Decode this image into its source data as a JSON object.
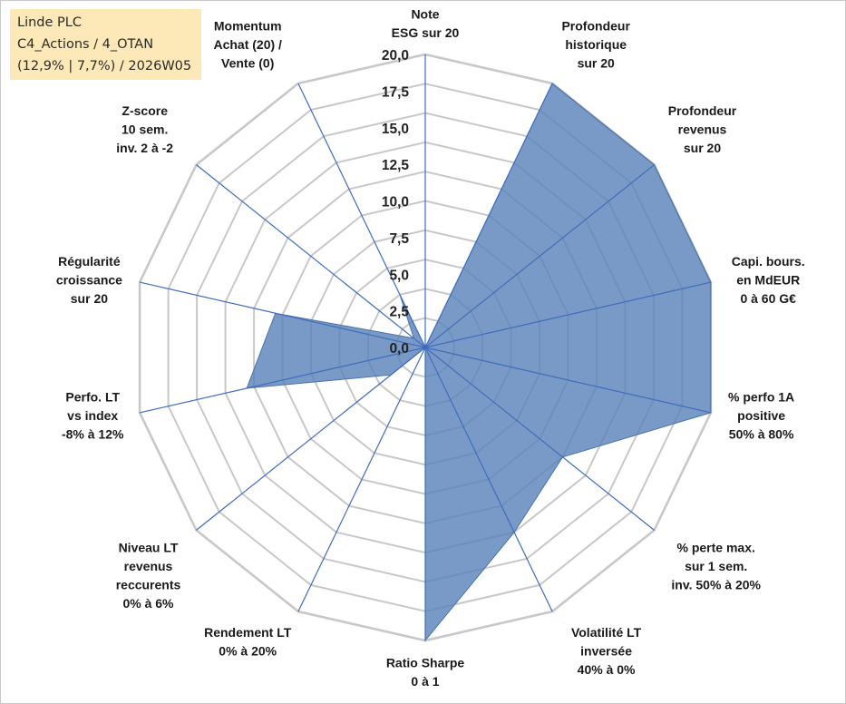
{
  "info_box": {
    "line1": "Linde PLC",
    "line2": "C4_Actions / 4_OTAN",
    "line3": "(12,9% | 7,7%) / 2026W05"
  },
  "chart_data": {
    "type": "radar",
    "title": "",
    "rmin": 0,
    "rmax": 20,
    "ticks": [
      "0,0",
      "2,5",
      "5,0",
      "7,5",
      "10,0",
      "12,5",
      "15,0",
      "17,5",
      "20,0"
    ],
    "tick_values": [
      0,
      2.5,
      5,
      7.5,
      10,
      12.5,
      15,
      17.5,
      20
    ],
    "grid_levels": 10,
    "categories": [
      [
        "Note",
        "ESG sur 20"
      ],
      [
        "Profondeur",
        "historique",
        "sur 20"
      ],
      [
        "Profondeur",
        "revenus",
        "sur 20"
      ],
      [
        "Capi. bours.",
        "en MdEUR",
        "0 à 60 G€"
      ],
      [
        "% perfo 1A",
        "positive",
        "50% à 80%"
      ],
      [
        "% perte max.",
        "sur 1 sem.",
        "inv. 50% à 20%"
      ],
      [
        "Volatilité LT",
        "inversée",
        "40% à 0%"
      ],
      [
        "Ratio Sharpe",
        "0 à 1"
      ],
      [
        "Rendement LT",
        "0% à 20%"
      ],
      [
        "Niveau LT",
        "revenus",
        "reccurents",
        "0% à 6%"
      ],
      [
        "Perfo. LT",
        "vs index",
        "-8% à 12%"
      ],
      [
        "Régularité",
        "croissance",
        "sur 20"
      ],
      [
        "Z-score",
        "10 sem.",
        "inv. 2 à -2"
      ],
      [
        "Momentum",
        "Achat (20) /",
        "Vente (0)"
      ]
    ],
    "series": [
      {
        "name": "Linde PLC",
        "values": [
          0,
          20,
          20,
          20,
          20,
          12,
          14,
          20,
          0,
          3,
          12.5,
          10.5,
          1,
          4
        ],
        "color": "#5b84b9"
      }
    ],
    "colors": {
      "fill": "#5b84b9",
      "edge": "#4a73aa",
      "grid": "#c8c8c8",
      "spoke": "#3f6dbd"
    }
  }
}
